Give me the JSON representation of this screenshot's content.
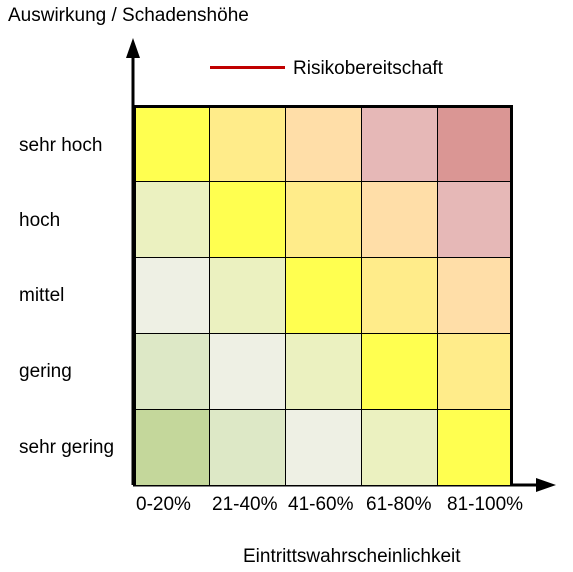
{
  "y_axis_title": "Auswirkung / Schadenshöhe",
  "x_axis_title": "Eintrittswahrscheinlichkeit",
  "legend": {
    "label": "Risikobereitschaft",
    "color": "#c00000"
  },
  "rows": [
    "sehr hoch",
    "hoch",
    "mittel",
    "gering",
    "sehr gering"
  ],
  "columns": [
    "0-20%",
    "21-40%",
    "41-60%",
    "61-80%",
    "81-100%"
  ],
  "cell_colors": [
    [
      "#ffff50",
      "#ffec8a",
      "#ffdea8",
      "#e6b8b7",
      "#da9694"
    ],
    [
      "#ebf1c0",
      "#ffff50",
      "#ffec8a",
      "#ffdea8",
      "#e6b8b7"
    ],
    [
      "#eef0e4",
      "#ebf1c0",
      "#ffff50",
      "#ffec8a",
      "#ffdea8"
    ],
    [
      "#dde8c6",
      "#eef0e4",
      "#ebf1c0",
      "#ffff50",
      "#ffec8a"
    ],
    [
      "#c4d79b",
      "#dde8c6",
      "#eef0e4",
      "#ebf1c0",
      "#ffff50"
    ]
  ]
}
